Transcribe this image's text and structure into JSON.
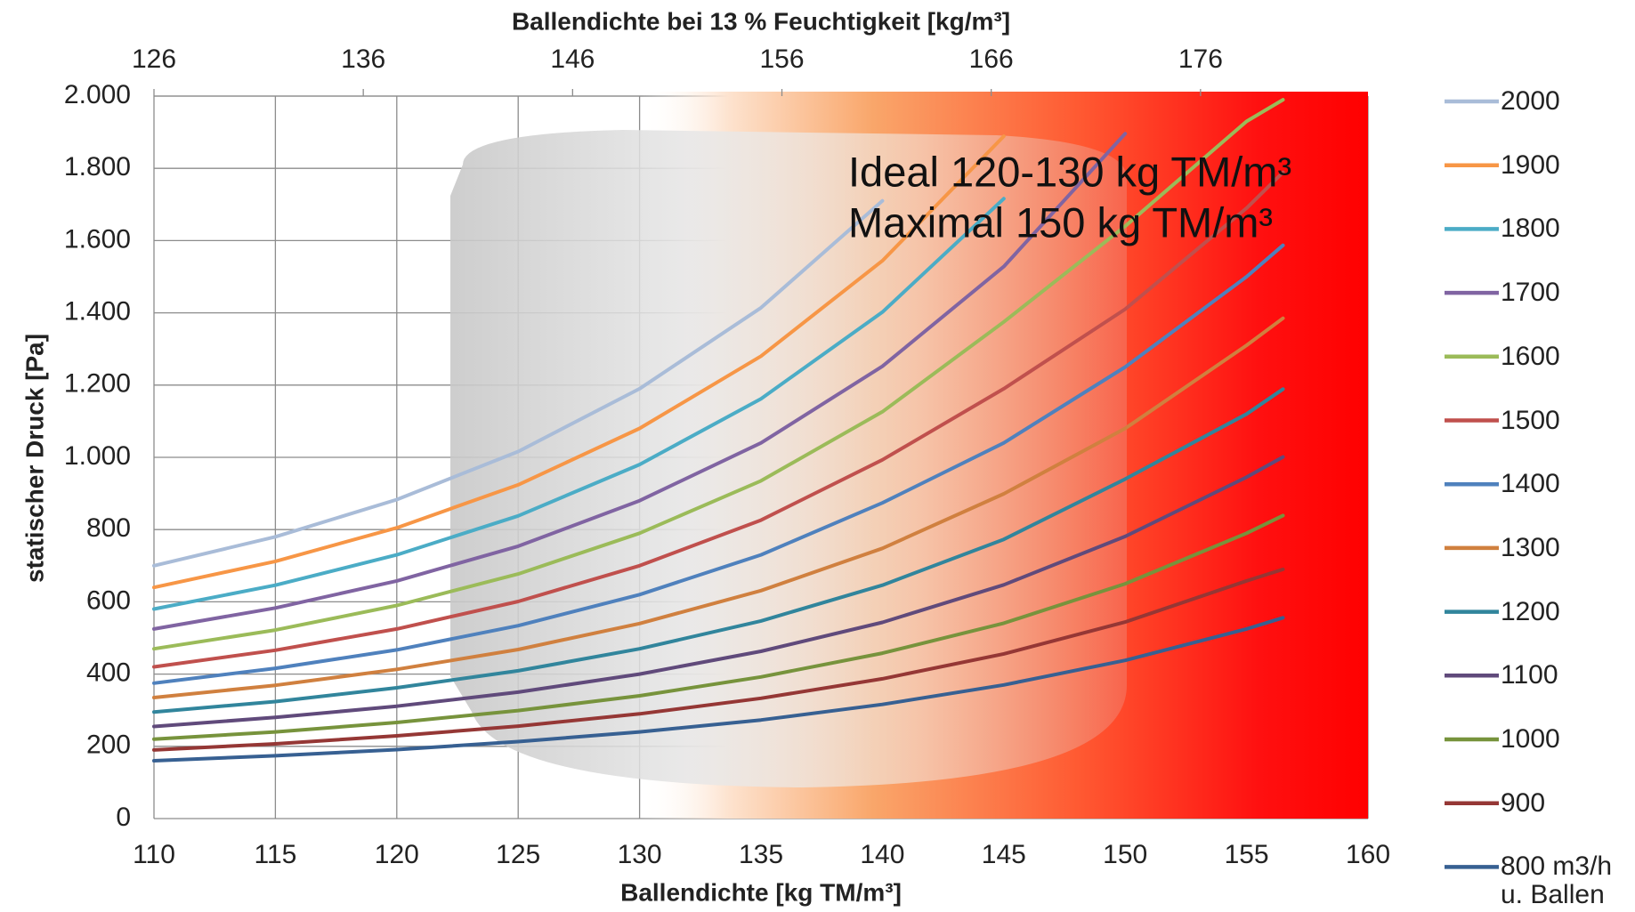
{
  "chart_data": {
    "type": "line",
    "x_label": "Ballendichte [kg TM/m³]",
    "x2_label": "Ballendichte bei 13 % Feuchtigkeit [kg/m³]",
    "y_label": "statischer Druck [Pa]",
    "annotations": [
      "Ideal 120-130 kg TM/m³",
      "Maximal 150 kg TM/m³"
    ],
    "x": [
      110,
      115,
      120,
      125,
      130,
      135,
      140,
      145,
      150,
      155,
      156.5
    ],
    "xlim": [
      110,
      160
    ],
    "xticks": [
      110,
      115,
      120,
      125,
      130,
      135,
      140,
      145,
      150,
      155,
      160
    ],
    "x2lim": [
      126,
      184
    ],
    "x2ticks": [
      126,
      136,
      146,
      156,
      166,
      176
    ],
    "ylim": [
      0,
      2000
    ],
    "yticks": [
      0,
      200,
      400,
      600,
      800,
      {
        "value": 1000,
        "label": "1.000"
      },
      {
        "value": 1200,
        "label": "1.200"
      },
      {
        "value": 1400,
        "label": "1.400"
      },
      {
        "value": 1600,
        "label": "1.600"
      },
      {
        "value": 1800,
        "label": "1.800"
      },
      {
        "value": 2000,
        "label": "2.000"
      }
    ],
    "grid": true,
    "legend": "right",
    "series": [
      {
        "name": "2000",
        "color": "#a9bcd8",
        "values": [
          700,
          780,
          883,
          1016,
          1190,
          1414,
          1710,
          null,
          null,
          null,
          null
        ]
      },
      {
        "name": "1900",
        "color": "#f79646",
        "values": [
          640,
          712,
          805,
          924,
          1080,
          1280,
          1544,
          1889,
          null,
          null,
          null
        ]
      },
      {
        "name": "1800",
        "color": "#4bacc6",
        "values": [
          580,
          646,
          730,
          838,
          980,
          1162,
          1402,
          1716,
          null,
          null,
          null
        ]
      },
      {
        "name": "1700",
        "color": "#8064a2",
        "values": [
          525,
          583,
          658,
          754,
          880,
          1040,
          1252,
          1528,
          1896,
          null,
          null
        ]
      },
      {
        "name": "1600",
        "color": "#9bbb59",
        "values": [
          470,
          522,
          590,
          677,
          790,
          935,
          1126,
          1375,
          1640,
          1930,
          1990
        ]
      },
      {
        "name": "1500",
        "color": "#c0504d",
        "values": [
          420,
          466,
          525,
          601,
          700,
          826,
          993,
          1190,
          1410,
          1690,
          1789
        ]
      },
      {
        "name": "1400",
        "color": "#4f81bd",
        "values": [
          375,
          416,
          467,
          534,
          620,
          730,
          874,
          1040,
          1250,
          1500,
          1587
        ]
      },
      {
        "name": "1300",
        "color": "#d0803f",
        "values": [
          335,
          369,
          413,
          468,
          540,
          631,
          748,
          899,
          1080,
          1310,
          1385
        ]
      },
      {
        "name": "1200",
        "color": "#31859c",
        "values": [
          295,
          324,
          362,
          409,
          470,
          547,
          646,
          773,
          940,
          1120,
          1189
        ]
      },
      {
        "name": "1100",
        "color": "#604a7b",
        "values": [
          255,
          280,
          311,
          350,
          400,
          463,
          543,
          647,
          781,
          945,
          1001
        ]
      },
      {
        "name": "1000",
        "color": "#77933c",
        "values": [
          220,
          240,
          266,
          299,
          340,
          392,
          458,
          541,
          650,
          790,
          839
        ]
      },
      {
        "name": "900",
        "color": "#953735",
        "values": [
          190,
          207,
          229,
          256,
          290,
          333,
          387,
          456,
          544,
          658,
          690
        ]
      },
      {
        "name": "800 m3/h u. Ballen",
        "color": "#376092",
        "values": [
          160,
          174,
          191,
          213,
          240,
          273,
          316,
          370,
          438,
          525,
          556
        ]
      }
    ]
  }
}
